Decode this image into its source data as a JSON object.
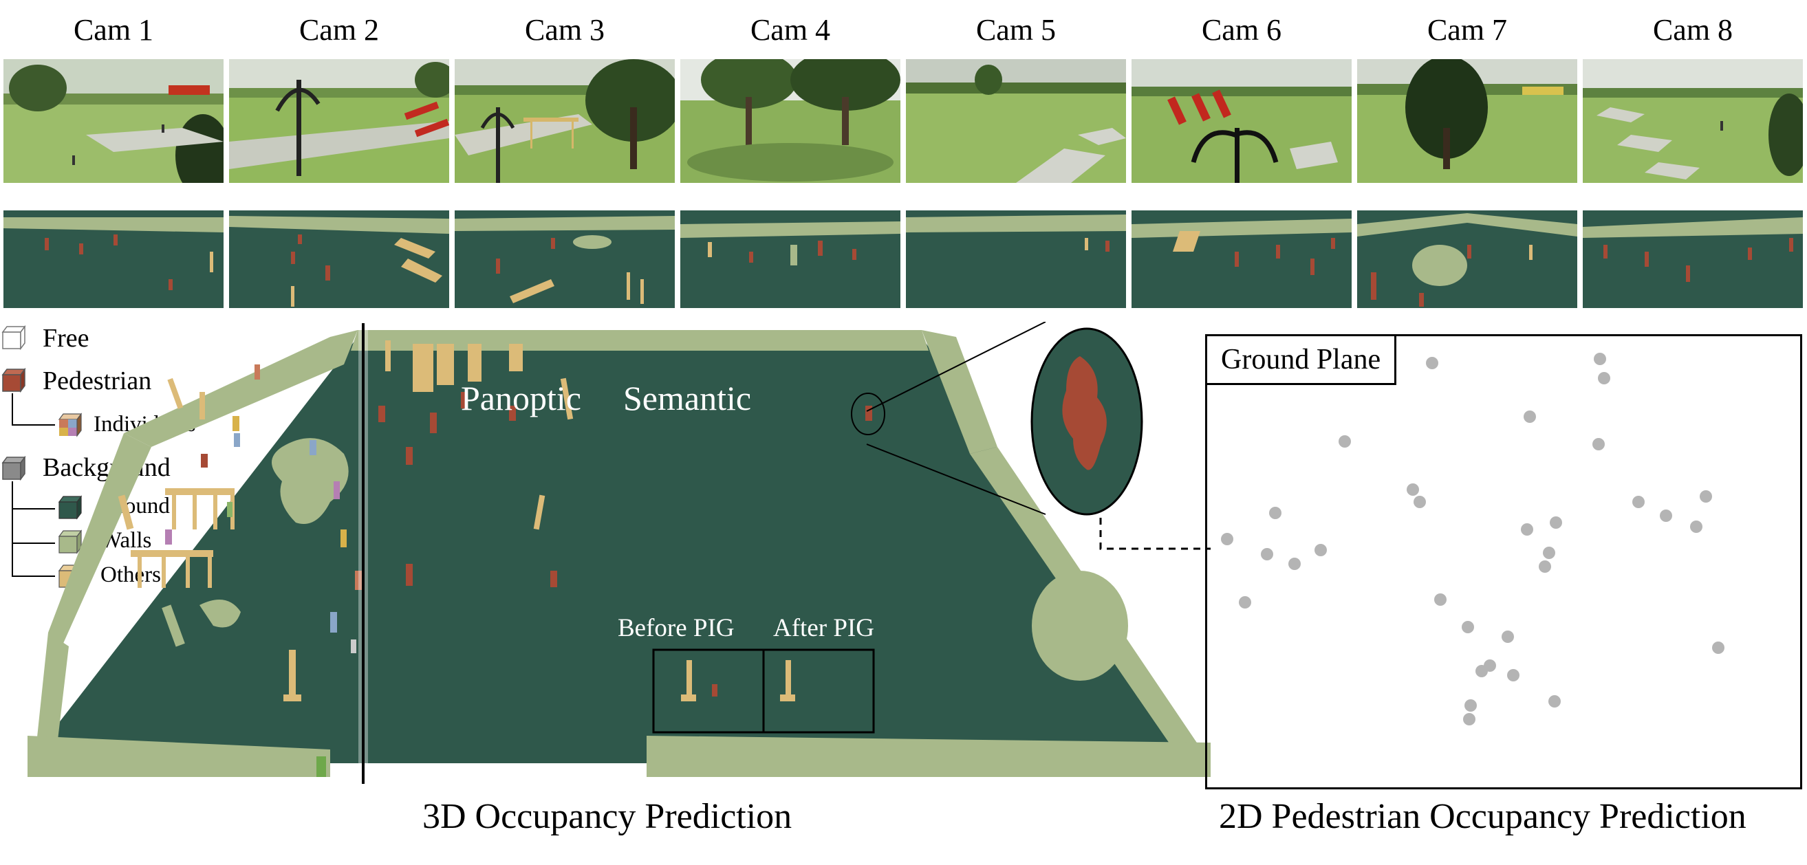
{
  "cameras": [
    "Cam 1",
    "Cam 2",
    "Cam 3",
    "Cam 4",
    "Cam 5",
    "Cam 6",
    "Cam 7",
    "Cam 8"
  ],
  "legend": {
    "free": "Free",
    "pedestrian": "Pedestrian",
    "individuals": "Individuals",
    "background": "Background",
    "ground": "Ground",
    "walls": "Walls",
    "others": "Others"
  },
  "scene": {
    "panoptic": "Panoptic",
    "semantic": "Semantic",
    "before_pig": "Before PIG",
    "after_pig": "After PIG"
  },
  "ground_plane": {
    "title": "Ground Plane"
  },
  "captions": {
    "left": "3D Occupancy Prediction",
    "right": "2D Pedestrian Occupancy Prediction"
  },
  "colors": {
    "ground": "#2f584b",
    "walls": "#a8b98a",
    "others": "#dcbb78",
    "pedestrian": "#a64a35",
    "grass": "#8fb05a",
    "point": "#b4b4b4"
  }
}
